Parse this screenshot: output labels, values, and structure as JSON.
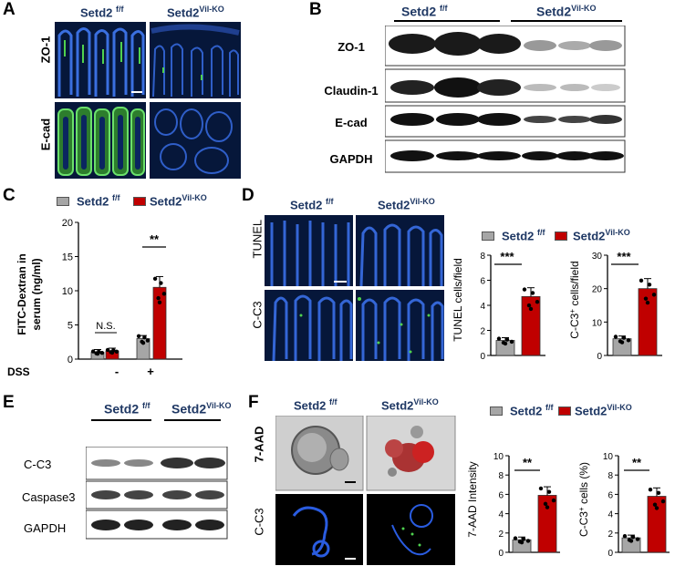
{
  "panels": {
    "A": "A",
    "B": "B",
    "C": "C",
    "D": "D",
    "E": "E",
    "F": "F"
  },
  "groups": {
    "ctrl": "Setd2",
    "ctrl_sup": "f/f",
    "ko": "Setd2",
    "ko_sup": "Vil-KO"
  },
  "A": {
    "rows": [
      "ZO-1",
      "E-cad"
    ]
  },
  "B": {
    "rows": [
      "ZO-1",
      "Claudin-1",
      "E-cad",
      "GAPDH"
    ]
  },
  "C": {
    "ylabel1": "FITC-Dextran in",
    "ylabel2": "serum (ng/ml)",
    "dss": "DSS",
    "minus": "-",
    "plus": "+",
    "ns": "N.S.",
    "sig": "**"
  },
  "D": {
    "rows": [
      "TUNEL",
      "C-C3"
    ],
    "sig1": "***",
    "sig2": "***",
    "ylabel1": "TUNEL cells/field",
    "ylabel2_main": "C-C3",
    "ylabel2_sup": "+",
    "ylabel2_rest": " cells/field"
  },
  "E": {
    "rows": [
      "C-C3",
      "Caspase3",
      "GAPDH"
    ]
  },
  "F": {
    "rows": [
      "7-AAD",
      "C-C3"
    ],
    "sig1": "**",
    "sig2": "**",
    "ylabel1": "7-AAD Intensity",
    "ylabel2_main": "C-C3",
    "ylabel2_sup": "+",
    "ylabel2_rest": " cells (%)"
  },
  "colors": {
    "ctrl": "#a6a6a6",
    "ko": "#c00000",
    "navy": "#1f3864",
    "tissue": "#0b2a6b",
    "nuclei": "#2f63d8",
    "green": "#4fd24f"
  },
  "chart_data": [
    {
      "type": "bar",
      "panel": "C",
      "categories": [
        "-",
        "+"
      ],
      "series": [
        {
          "name": "Setd2 f/f",
          "values": [
            1.0,
            3.0
          ]
        },
        {
          "name": "Setd2 Vil-KO",
          "values": [
            1.2,
            10.5
          ]
        }
      ],
      "ylim": [
        0,
        20
      ],
      "yticks": [
        0,
        5,
        10,
        15,
        20
      ],
      "xlabel": "DSS",
      "ylabel": "FITC-Dextran in serum (ng/ml)"
    },
    {
      "type": "bar",
      "panel": "D1",
      "categories": [
        "Setd2 f/f",
        "Setd2 Vil-KO"
      ],
      "values": [
        1.2,
        4.7
      ],
      "ylim": [
        0,
        8
      ],
      "yticks": [
        0,
        2,
        4,
        6,
        8
      ],
      "ylabel": "TUNEL cells/field"
    },
    {
      "type": "bar",
      "panel": "D2",
      "categories": [
        "Setd2 f/f",
        "Setd2 Vil-KO"
      ],
      "values": [
        5.0,
        20.0
      ],
      "ylim": [
        0,
        30
      ],
      "yticks": [
        0,
        10,
        20,
        30
      ],
      "ylabel": "C-C3+ cells/field"
    },
    {
      "type": "bar",
      "panel": "F1",
      "categories": [
        "Setd2 f/f",
        "Setd2 Vil-KO"
      ],
      "values": [
        1.3,
        5.9
      ],
      "ylim": [
        0,
        10
      ],
      "yticks": [
        0,
        2,
        4,
        6,
        8,
        10
      ],
      "ylabel": "7-AAD Intensity"
    },
    {
      "type": "bar",
      "panel": "F2",
      "categories": [
        "Setd2 f/f",
        "Setd2 Vil-KO"
      ],
      "values": [
        1.5,
        5.8
      ],
      "ylim": [
        0,
        10
      ],
      "yticks": [
        0,
        2,
        4,
        6,
        8,
        10
      ],
      "ylabel": "C-C3+ cells (%)"
    }
  ]
}
